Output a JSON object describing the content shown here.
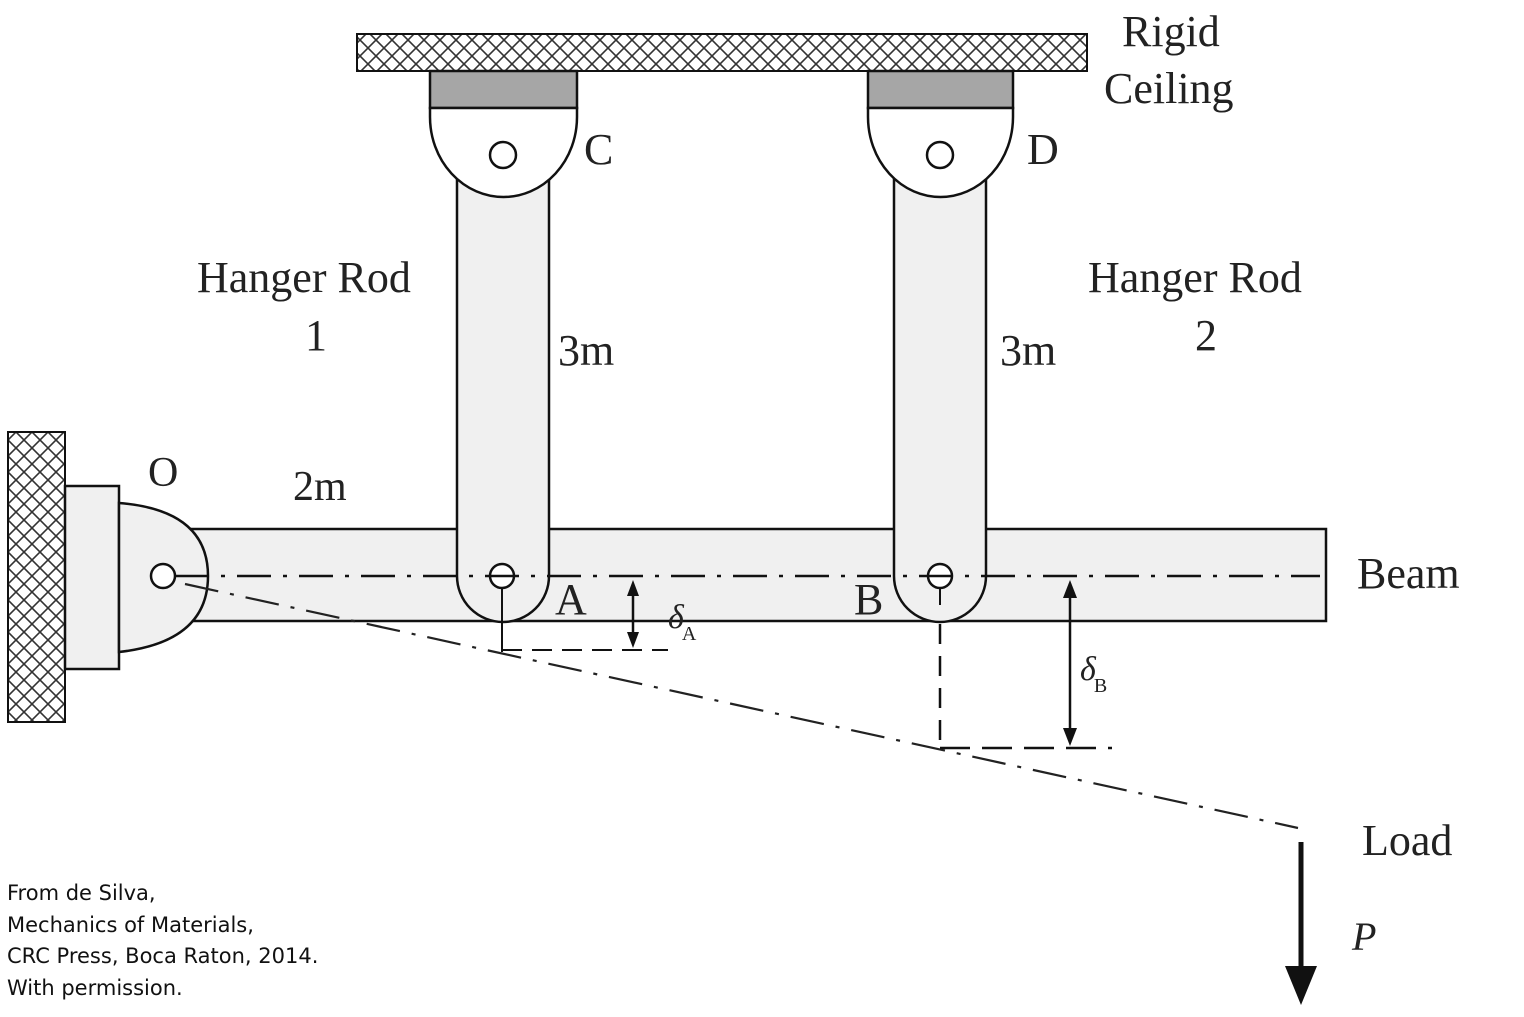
{
  "labels": {
    "ceiling_line1": "Rigid",
    "ceiling_line2": "Ceiling",
    "point_c": "C",
    "point_d": "D",
    "point_o": "O",
    "point_a": "A",
    "point_b": "B",
    "rod1_line1": "Hanger Rod",
    "rod1_line2": "1",
    "rod2_line1": "Hanger Rod",
    "rod2_line2": "2",
    "rod1_length": "3m",
    "rod2_length": "3m",
    "beam_oa_length": "2m",
    "beam": "Beam",
    "delta_a_symbol": "δ",
    "delta_a_sub": "A",
    "delta_b_symbol": "δ",
    "delta_b_sub": "B",
    "load": "Load",
    "load_symbol": "P"
  },
  "credit": [
    "From de Silva,",
    "Mechanics of Materials,",
    "CRC Press, Boca Raton, 2014.",
    "With permission."
  ],
  "colors": {
    "line": "#111111",
    "bracket_fill": "#a6a6a6",
    "member_fill": "#f0f0f0",
    "hatch": "#333333"
  }
}
